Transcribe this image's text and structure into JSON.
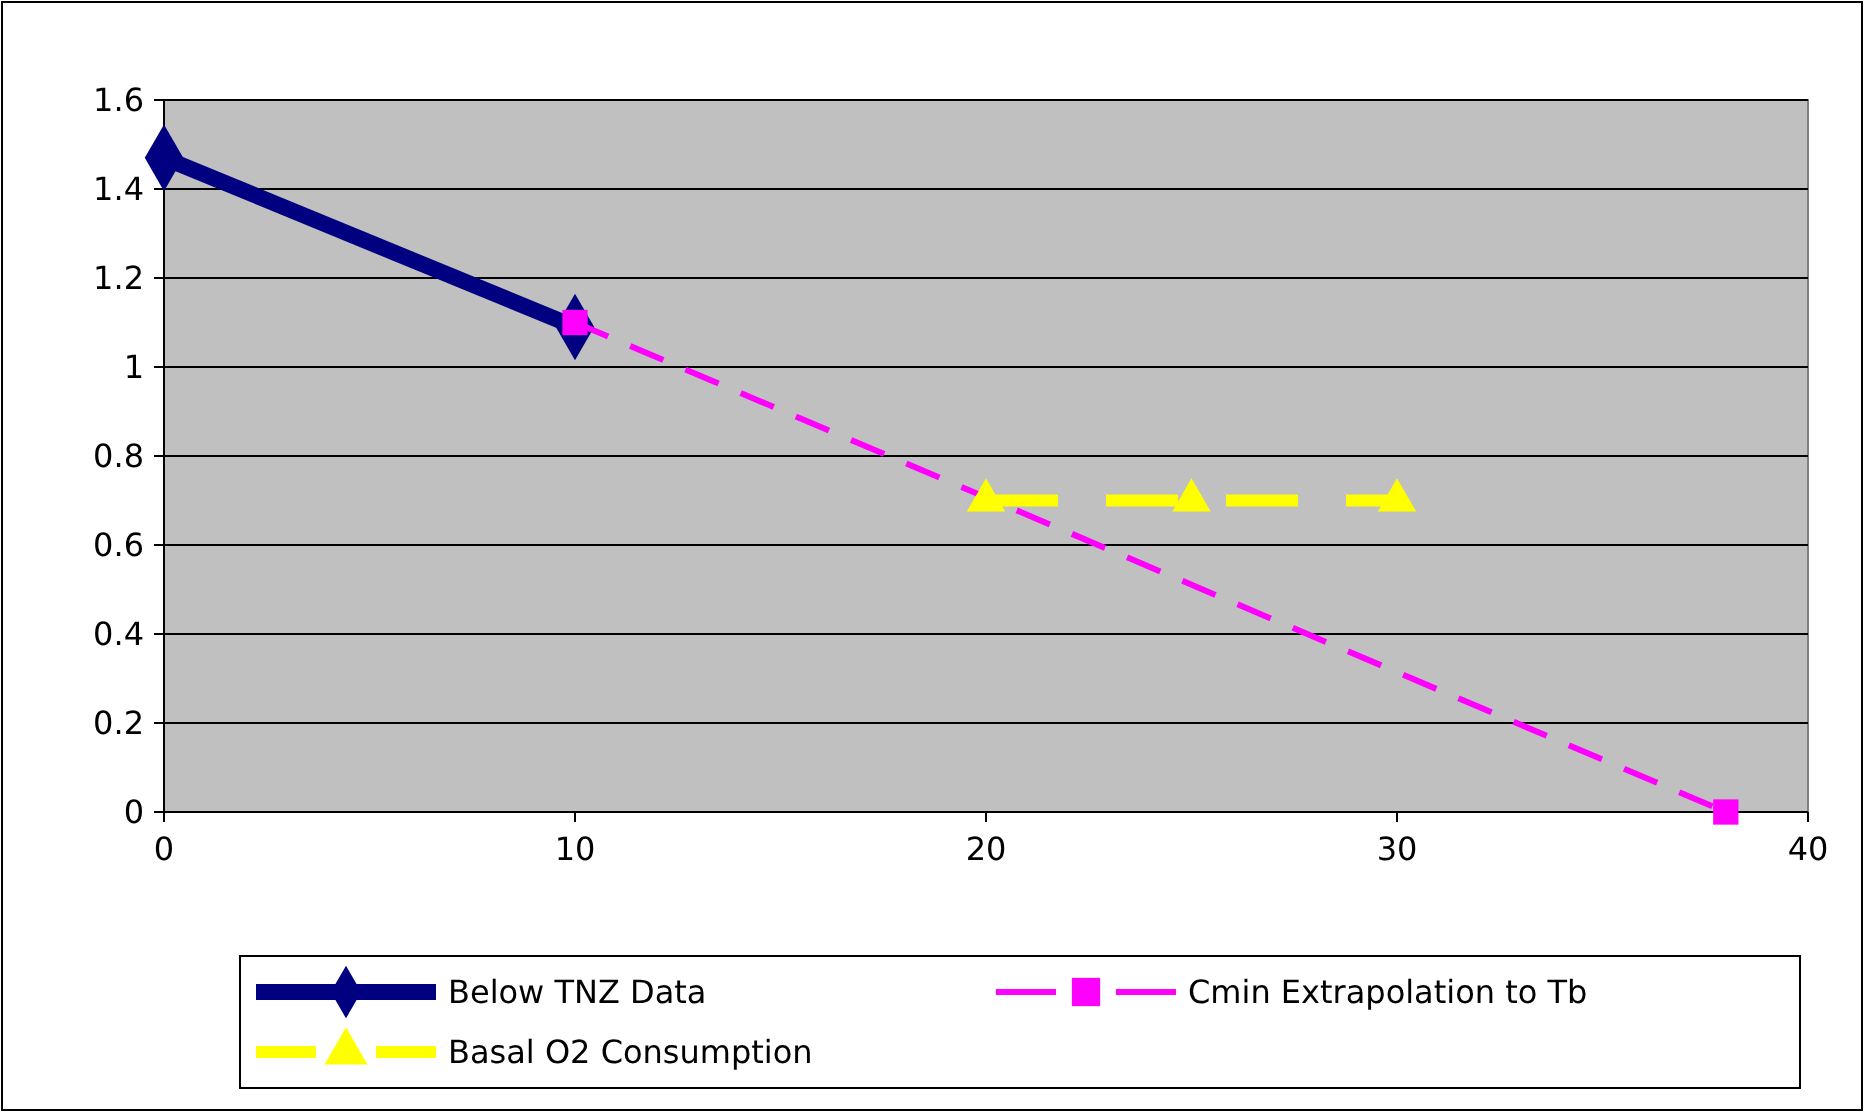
{
  "chart_data": {
    "type": "line",
    "xlim": [
      0,
      40
    ],
    "xticks": [
      0,
      10,
      20,
      30,
      40
    ],
    "ylim": [
      0,
      1.6
    ],
    "yticks": [
      0,
      0.2,
      0.4,
      0.6,
      0.8,
      1,
      1.2,
      1.4,
      1.6
    ],
    "grid": "y",
    "legend": "bottom",
    "series": [
      {
        "name": "Below TNZ Data",
        "color": "#000080",
        "x": [
          0,
          10
        ],
        "values": [
          1.47,
          1.09
        ],
        "marker": "diamond",
        "line_style": "solid"
      },
      {
        "name": "Cmin Extrapolation to Tb",
        "color": "#ff00ff",
        "x": [
          10,
          38
        ],
        "values": [
          1.1,
          0
        ],
        "marker": "square",
        "line_style": "dashed"
      },
      {
        "name": "Basal O2 Consumption",
        "color": "#ffff00",
        "x": [
          20,
          25,
          30
        ],
        "values": [
          0.7,
          0.7,
          0.7
        ],
        "marker": "triangle",
        "line_style": "dashed"
      }
    ]
  }
}
